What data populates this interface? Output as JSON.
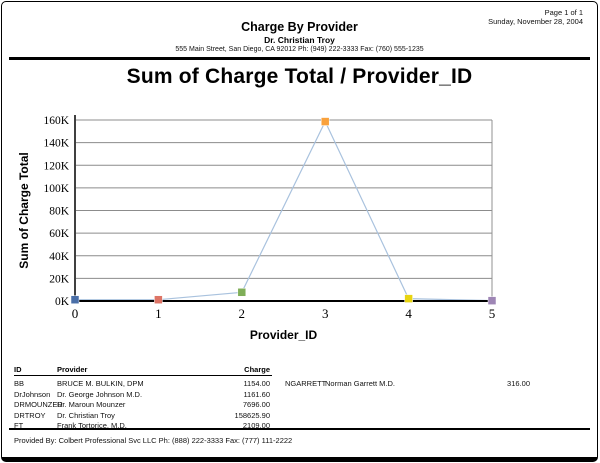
{
  "page_header": {
    "page_number": "Page 1 of 1",
    "date": "Sunday, November 28, 2004",
    "report_title": "Charge By Provider",
    "practice_name": "Dr. Christian Troy",
    "practice_address": "555 Main Street, San Diego, CA 92012 Ph: (949) 222-3333 Fax: (760) 555-1235"
  },
  "chart_data": {
    "type": "line",
    "title": "Sum of Charge Total / Provider_ID",
    "xlabel": "Provider_ID",
    "ylabel": "Sum of Charge Total",
    "x": [
      0,
      1,
      2,
      3,
      4,
      5
    ],
    "values": [
      1154.0,
      1161.6,
      7696.0,
      158625.9,
      2109.0,
      316.0
    ],
    "ylim": [
      0,
      160000
    ],
    "ytick_step": 20000,
    "ytick_labels": [
      "0K",
      "20K",
      "40K",
      "60K",
      "80K",
      "100K",
      "120K",
      "140K",
      "160K"
    ],
    "xtick_labels": [
      "0",
      "1",
      "2",
      "3",
      "4",
      "5"
    ],
    "grid": true,
    "legend": "none",
    "line_color": "#a9c2de",
    "grid_color": "#8c8c8c",
    "marker_colors": [
      "#4a6fa8",
      "#dd7466",
      "#7fae58",
      "#f9a13c",
      "#e8d411",
      "#9e86b5"
    ]
  },
  "table": {
    "headers": {
      "id": "ID",
      "provider": "Provider",
      "charge": "Charge"
    },
    "left_rows": [
      {
        "id": "BB",
        "provider": "BRUCE M. BULKIN, DPM",
        "charge": "1154.00"
      },
      {
        "id": "DrJohnson",
        "provider": "Dr. George Johnson M.D.",
        "charge": "1161.60"
      },
      {
        "id": "DRMOUNZER",
        "provider": "Dr. Maroun Mounzer",
        "charge": "7696.00"
      },
      {
        "id": "DRTROY",
        "provider": "Dr. Christian Troy",
        "charge": "158625.90"
      },
      {
        "id": "FT",
        "provider": "Frank Tortorice, M.D.",
        "charge": "2109.00"
      }
    ],
    "right_rows": [
      {
        "id": "NGARRETT",
        "provider": "Norman Garrett M.D.",
        "charge": "316.00"
      }
    ]
  },
  "footer": {
    "provided_by": "Provided By: Colbert Professional Svc LLC Ph: (888) 222-3333 Fax: (777) 111-2222"
  }
}
